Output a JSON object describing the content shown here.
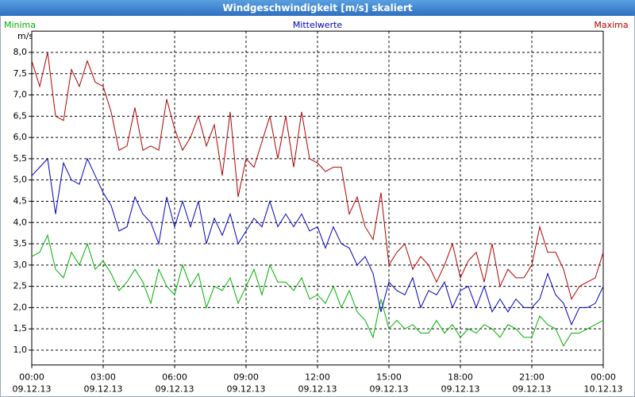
{
  "chart_data": {
    "type": "line",
    "title": "Windgeschwindigkeit [m/s] skaliert",
    "y_label": "m/s",
    "x": [
      0,
      20,
      40,
      60,
      80,
      100,
      120,
      140,
      160,
      180,
      200,
      220,
      240,
      260,
      280,
      300,
      320,
      340,
      360,
      380,
      400,
      420,
      440,
      460,
      480,
      500,
      520,
      540,
      560,
      580,
      600,
      620,
      640,
      660,
      680,
      700,
      720,
      740,
      760,
      780,
      800,
      820,
      840,
      860,
      880,
      900,
      920,
      940,
      960,
      980,
      1000,
      1020,
      1040,
      1060,
      1080,
      1100,
      1120,
      1140,
      1160,
      1180,
      1200,
      1220,
      1240,
      1260,
      1280,
      1300,
      1320,
      1340,
      1360,
      1380,
      1400,
      1420,
      1440
    ],
    "series": [
      {
        "name": "Minima",
        "color": "#00b000",
        "values": [
          3.2,
          3.3,
          3.7,
          2.9,
          2.7,
          3.3,
          3.0,
          3.5,
          2.9,
          3.1,
          2.8,
          2.4,
          2.6,
          2.9,
          2.6,
          2.1,
          2.9,
          2.5,
          2.3,
          3.0,
          2.5,
          2.8,
          2.0,
          2.5,
          2.4,
          2.7,
          2.1,
          2.5,
          2.9,
          2.3,
          3.0,
          2.6,
          2.6,
          2.4,
          2.7,
          2.2,
          2.3,
          2.1,
          2.5,
          2.0,
          2.4,
          1.9,
          1.7,
          1.3,
          2.2,
          1.5,
          1.7,
          1.5,
          1.6,
          1.4,
          1.4,
          1.7,
          1.4,
          1.6,
          1.3,
          1.5,
          1.4,
          1.6,
          1.5,
          1.3,
          1.6,
          1.5,
          1.3,
          1.3,
          1.8,
          1.6,
          1.5,
          1.1,
          1.4,
          1.4,
          1.5,
          1.6,
          1.7
        ]
      },
      {
        "name": "Mittelwerte",
        "color": "#0000c0",
        "values": [
          5.1,
          5.3,
          5.5,
          4.2,
          5.4,
          5.0,
          4.9,
          5.5,
          5.1,
          4.7,
          4.4,
          3.8,
          3.9,
          4.6,
          4.2,
          4.0,
          3.5,
          4.6,
          3.9,
          4.5,
          3.9,
          4.5,
          3.5,
          4.1,
          3.7,
          4.2,
          3.5,
          3.8,
          4.1,
          3.9,
          4.5,
          3.9,
          4.2,
          3.9,
          4.2,
          3.8,
          3.9,
          3.4,
          3.9,
          3.5,
          3.4,
          3.0,
          3.2,
          2.8,
          1.9,
          2.6,
          2.4,
          2.3,
          2.7,
          2.0,
          2.4,
          2.3,
          2.6,
          2.0,
          2.4,
          2.5,
          2.0,
          2.5,
          1.9,
          2.2,
          1.9,
          2.2,
          2.0,
          2.0,
          2.2,
          2.8,
          2.3,
          2.1,
          1.6,
          2.0,
          2.0,
          2.1,
          2.5
        ]
      },
      {
        "name": "Maxima",
        "color": "#b00000",
        "values": [
          7.8,
          7.2,
          8.0,
          6.5,
          6.4,
          7.6,
          7.2,
          7.8,
          7.3,
          7.2,
          6.6,
          5.7,
          5.8,
          6.7,
          5.7,
          5.8,
          5.7,
          6.9,
          6.2,
          5.7,
          6.0,
          6.5,
          5.8,
          6.3,
          5.1,
          6.6,
          4.6,
          5.5,
          5.3,
          5.9,
          6.5,
          5.5,
          6.5,
          5.3,
          6.6,
          5.5,
          5.4,
          5.2,
          5.3,
          5.3,
          4.2,
          4.6,
          3.9,
          3.6,
          4.7,
          3.0,
          3.3,
          3.5,
          2.9,
          3.2,
          3.0,
          2.6,
          3.0,
          3.5,
          2.7,
          3.1,
          3.3,
          2.6,
          3.5,
          2.5,
          2.9,
          2.7,
          2.7,
          3.0,
          3.9,
          3.3,
          3.3,
          2.9,
          2.2,
          2.5,
          2.6,
          2.7,
          3.3
        ]
      }
    ],
    "xlim": [
      0,
      1440
    ],
    "xticks": [
      {
        "value": 0,
        "label": "00:00",
        "sublabel": "09.12.13"
      },
      {
        "value": 180,
        "label": "03:00",
        "sublabel": "09.12.13"
      },
      {
        "value": 360,
        "label": "06:00",
        "sublabel": "09.12.13"
      },
      {
        "value": 540,
        "label": "09:00",
        "sublabel": "09.12.13"
      },
      {
        "value": 720,
        "label": "12:00",
        "sublabel": "09.12.13"
      },
      {
        "value": 900,
        "label": "15:00",
        "sublabel": "09.12.13"
      },
      {
        "value": 1080,
        "label": "18:00",
        "sublabel": "09.12.13"
      },
      {
        "value": 1260,
        "label": "21:00",
        "sublabel": "09.12.13"
      },
      {
        "value": 1440,
        "label": "00:00",
        "sublabel": "10.12.13"
      }
    ],
    "ylim": [
      0.65,
      8.5
    ],
    "yticks": [
      {
        "value": 1,
        "label": "1,0"
      },
      {
        "value": 1.5,
        "label": "1,5"
      },
      {
        "value": 2,
        "label": "2,0"
      },
      {
        "value": 2.5,
        "label": "2,5"
      },
      {
        "value": 3,
        "label": "3,0"
      },
      {
        "value": 3.5,
        "label": "3,5"
      },
      {
        "value": 4,
        "label": "4,0"
      },
      {
        "value": 4.5,
        "label": "4,5"
      },
      {
        "value": 5,
        "label": "5,0"
      },
      {
        "value": 5.5,
        "label": "5,5"
      },
      {
        "value": 6,
        "label": "6,0"
      },
      {
        "value": 6.5,
        "label": "6,5"
      },
      {
        "value": 7,
        "label": "7,0"
      },
      {
        "value": 7.5,
        "label": "7,5"
      },
      {
        "value": 8,
        "label": "8,0"
      }
    ],
    "grid": true
  }
}
